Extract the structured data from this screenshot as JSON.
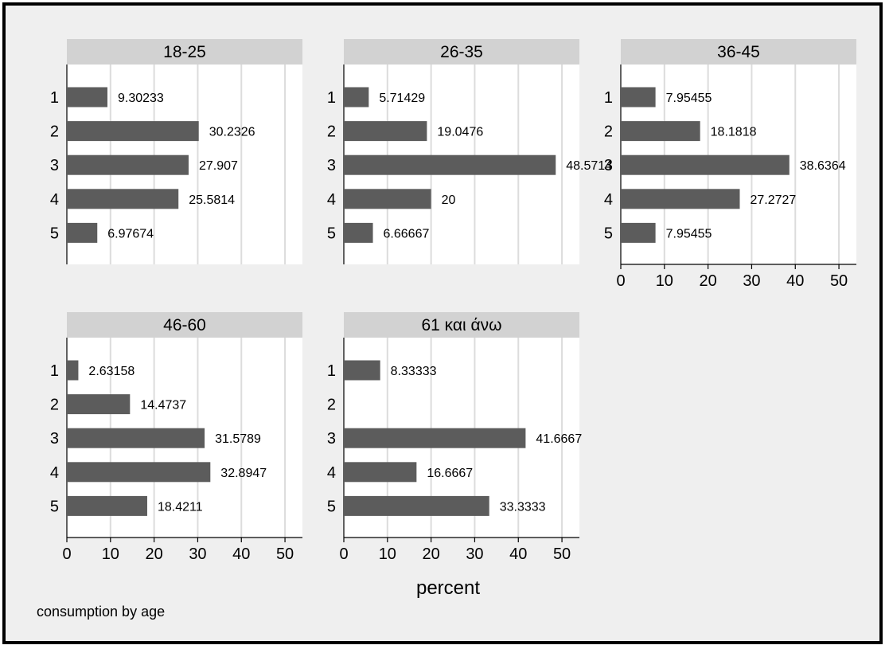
{
  "chart_data": {
    "type": "bar",
    "orientation": "horizontal",
    "xlabel": "percent",
    "note": "consumption by age",
    "xlim": [
      0,
      54
    ],
    "xticks": [
      0,
      10,
      20,
      30,
      40,
      50
    ],
    "categories": [
      "1",
      "2",
      "3",
      "4",
      "5"
    ],
    "grid": true,
    "colors": {
      "bar": "#5c5c5c",
      "panel_header": "#d2d2d2",
      "gridline": "#dcdcdc",
      "background": "#efefef",
      "plot_background": "#ffffff"
    },
    "panels": [
      {
        "title": "18-25",
        "values": [
          9.30233,
          30.2326,
          27.907,
          25.5814,
          6.97674
        ],
        "labels": [
          "9.30233",
          "30.2326",
          "27.907",
          "25.5814",
          "6.97674"
        ]
      },
      {
        "title": "26-35",
        "values": [
          5.71429,
          19.0476,
          48.5714,
          20,
          6.66667
        ],
        "labels": [
          "5.71429",
          "19.0476",
          "48.5714",
          "20",
          "6.66667"
        ]
      },
      {
        "title": "36-45",
        "values": [
          7.95455,
          18.1818,
          38.6364,
          27.2727,
          7.95455
        ],
        "labels": [
          "7.95455",
          "18.1818",
          "38.6364",
          "27.2727",
          "7.95455"
        ]
      },
      {
        "title": "46-60",
        "values": [
          2.63158,
          14.4737,
          31.5789,
          32.8947,
          18.4211
        ],
        "labels": [
          "2.63158",
          "14.4737",
          "31.5789",
          "32.8947",
          "18.4211"
        ]
      },
      {
        "title": "61 και άνω",
        "values": [
          8.33333,
          null,
          41.6667,
          16.6667,
          33.3333
        ],
        "labels": [
          "8.33333",
          "",
          "41.6667",
          "16.6667",
          "33.3333"
        ]
      }
    ]
  }
}
